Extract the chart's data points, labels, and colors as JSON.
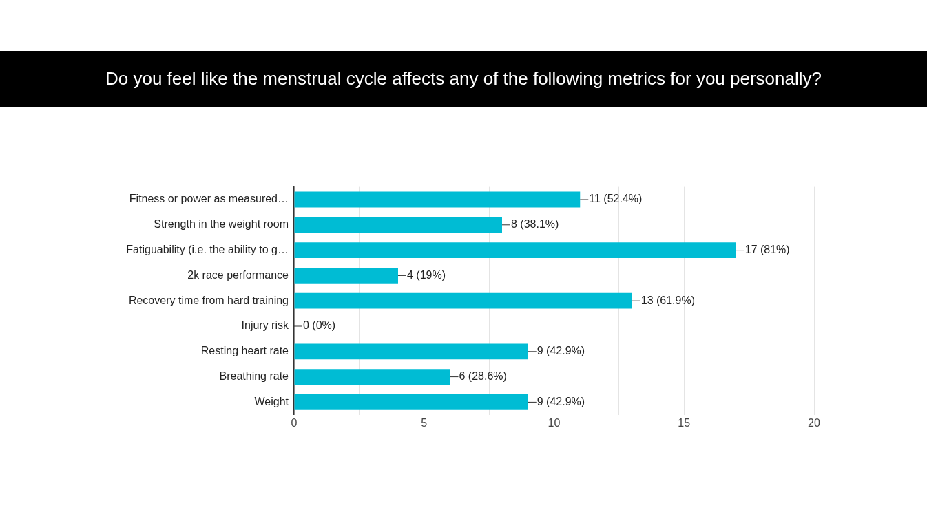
{
  "chart_data": {
    "type": "bar",
    "orientation": "horizontal",
    "title": "Do you feel like the menstrual cycle affects any of the following metrics for you personally?",
    "categories": [
      "Fitness or power as measured…",
      "Strength in the weight room",
      "Fatiguability (i.e. the ability to g…",
      "2k race performance",
      "Recovery time from hard training",
      "Injury risk",
      "Resting heart rate",
      "Breathing rate",
      "Weight"
    ],
    "values": [
      11,
      8,
      17,
      4,
      13,
      0,
      9,
      6,
      9
    ],
    "value_labels": [
      "11 (52.4%)",
      "8 (38.1%)",
      "17 (81%)",
      "4 (19%)",
      "13 (61.9%)",
      "0 (0%)",
      "9 (42.9%)",
      "6 (28.6%)",
      "9 (42.9%)"
    ],
    "color": "#00bcd4",
    "xlim": [
      0,
      20
    ],
    "xticks": [
      0,
      {
        "value": 2.5,
        "label": null
      },
      5,
      {
        "value": 7.5,
        "label": null
      },
      10,
      {
        "value": 12.5,
        "label": null
      },
      15,
      {
        "value": 17.5,
        "label": null
      },
      20
    ],
    "grid": "x",
    "legend": false
  }
}
